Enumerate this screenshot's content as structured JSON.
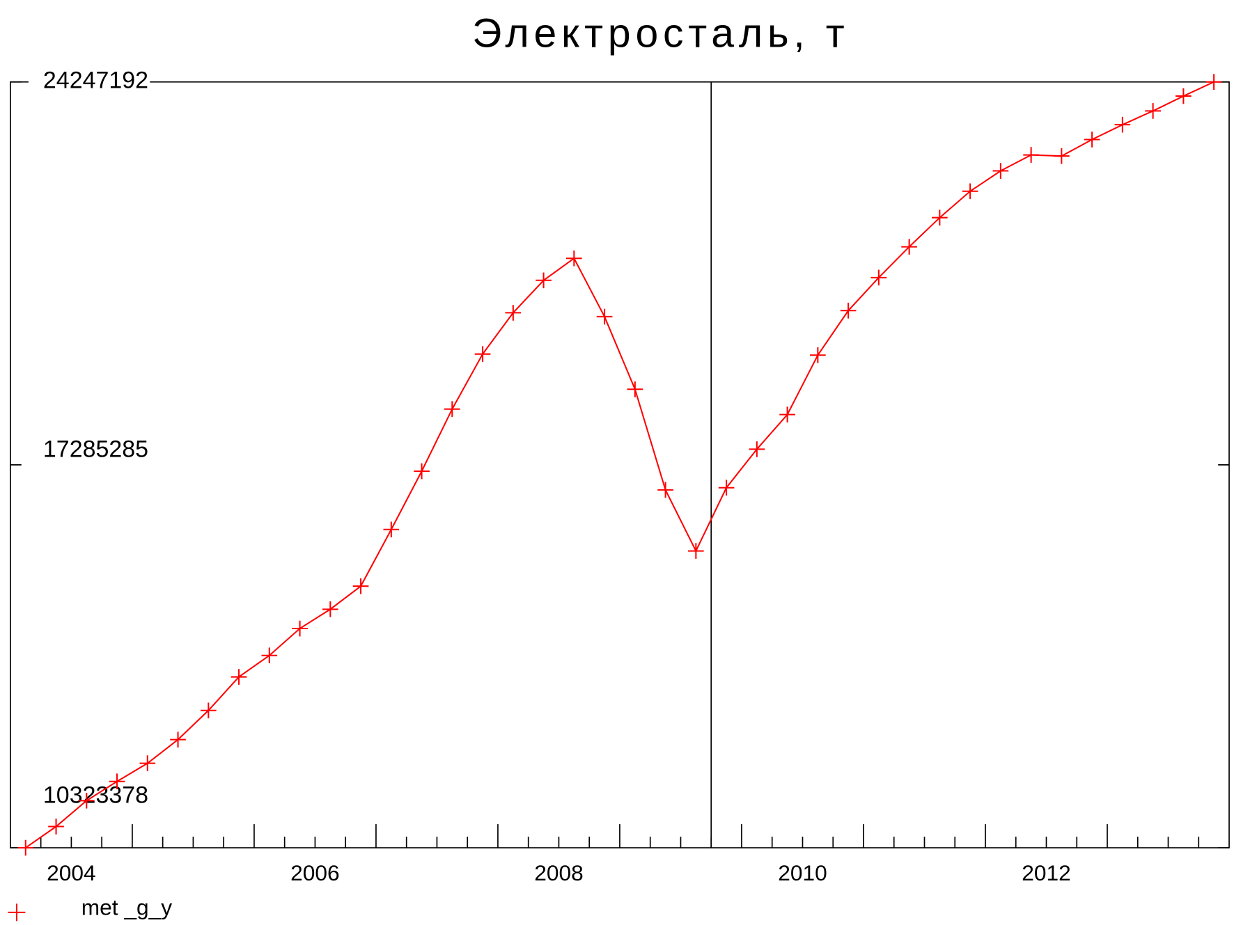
{
  "chart_data": {
    "type": "line",
    "title": "Электросталь, т",
    "x": [
      2003.625,
      2003.875,
      2004.125,
      2004.375,
      2004.625,
      2004.875,
      2005.125,
      2005.375,
      2005.625,
      2005.875,
      2006.125,
      2006.375,
      2006.625,
      2006.875,
      2007.125,
      2007.375,
      2007.625,
      2007.875,
      2008.125,
      2008.375,
      2008.625,
      2008.875,
      2009.125,
      2009.375,
      2009.625,
      2009.875,
      2010.125,
      2010.375,
      2010.625,
      2010.875,
      2011.125,
      2011.375,
      2011.625,
      2011.875,
      2012.125,
      2012.375,
      2012.625,
      2012.875,
      2013.125,
      2013.375
    ],
    "series": [
      {
        "name": "met _g_y",
        "color": "#ff0000",
        "values": [
          10323378,
          10710000,
          11180000,
          11530000,
          11860000,
          12290000,
          12820000,
          13430000,
          13820000,
          14310000,
          14660000,
          15080000,
          16110000,
          17170000,
          18300000,
          19300000,
          20050000,
          20640000,
          21040000,
          19980000,
          18660000,
          16830000,
          15720000,
          16870000,
          17570000,
          18200000,
          19280000,
          20090000,
          20690000,
          21250000,
          21780000,
          22260000,
          22630000,
          22920000,
          22900000,
          23200000,
          23470000,
          23720000,
          23990000,
          24247192
        ]
      }
    ],
    "xlim": [
      2003.5,
      2013.5
    ],
    "xticks": [
      2004,
      2006,
      2008,
      2010,
      2012
    ],
    "xminorticks": [
      2003.75,
      2004.0,
      2004.25,
      2004.5,
      2004.75,
      2005.0,
      2005.25,
      2005.5,
      2005.75,
      2006.0,
      2006.25,
      2006.5,
      2006.75,
      2007.0,
      2007.25,
      2007.5,
      2007.75,
      2008.0,
      2008.25,
      2008.5,
      2008.75,
      2009.0,
      2009.25,
      2009.5,
      2009.75,
      2010.0,
      2010.25,
      2010.5,
      2010.75,
      2011.0,
      2011.25,
      2011.5,
      2011.75,
      2012.0,
      2012.25,
      2012.5,
      2012.75,
      2013.0,
      2013.25
    ],
    "vline": 2009.25,
    "ylim": [
      10323378,
      24247192
    ],
    "yticks": [
      10323378,
      17285285,
      24247192
    ],
    "legend": "bottom-left"
  }
}
